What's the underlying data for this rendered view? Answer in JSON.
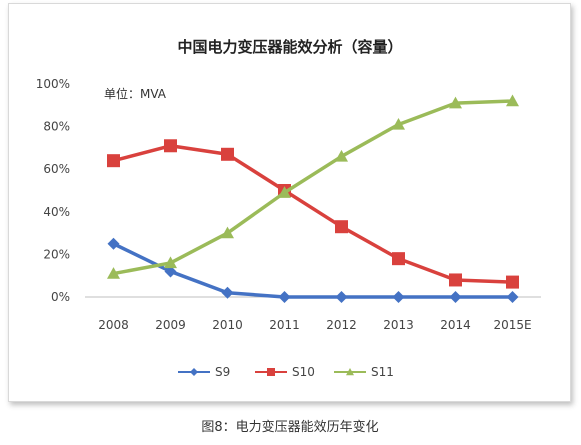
{
  "caption": "图8：电力变压器能效历年变化",
  "chart_data": {
    "type": "line",
    "title": "中国电力变压器能效分析（容量）",
    "note": "单位：MVA",
    "xlabel": "",
    "ylabel": "",
    "categories": [
      "2008",
      "2009",
      "2010",
      "2011",
      "2012",
      "2013",
      "2014",
      "2015E"
    ],
    "ylim": [
      0,
      100
    ],
    "yticks": [
      0,
      20,
      40,
      60,
      80,
      100
    ],
    "ytick_labels": [
      "0%",
      "20%",
      "40%",
      "60%",
      "80%",
      "100%"
    ],
    "grid": false,
    "legend_position": "bottom",
    "series": [
      {
        "name": "S9",
        "color": "#4472C4",
        "marker": "diamond",
        "values": [
          25,
          12,
          2,
          0,
          0,
          0,
          0,
          0
        ]
      },
      {
        "name": "S10",
        "color": "#D9413D",
        "marker": "square",
        "values": [
          64,
          71,
          67,
          50,
          33,
          18,
          8,
          7
        ]
      },
      {
        "name": "S11",
        "color": "#9BBB59",
        "marker": "triangle",
        "values": [
          11,
          16,
          30,
          49,
          66,
          81,
          91,
          92
        ]
      }
    ]
  }
}
